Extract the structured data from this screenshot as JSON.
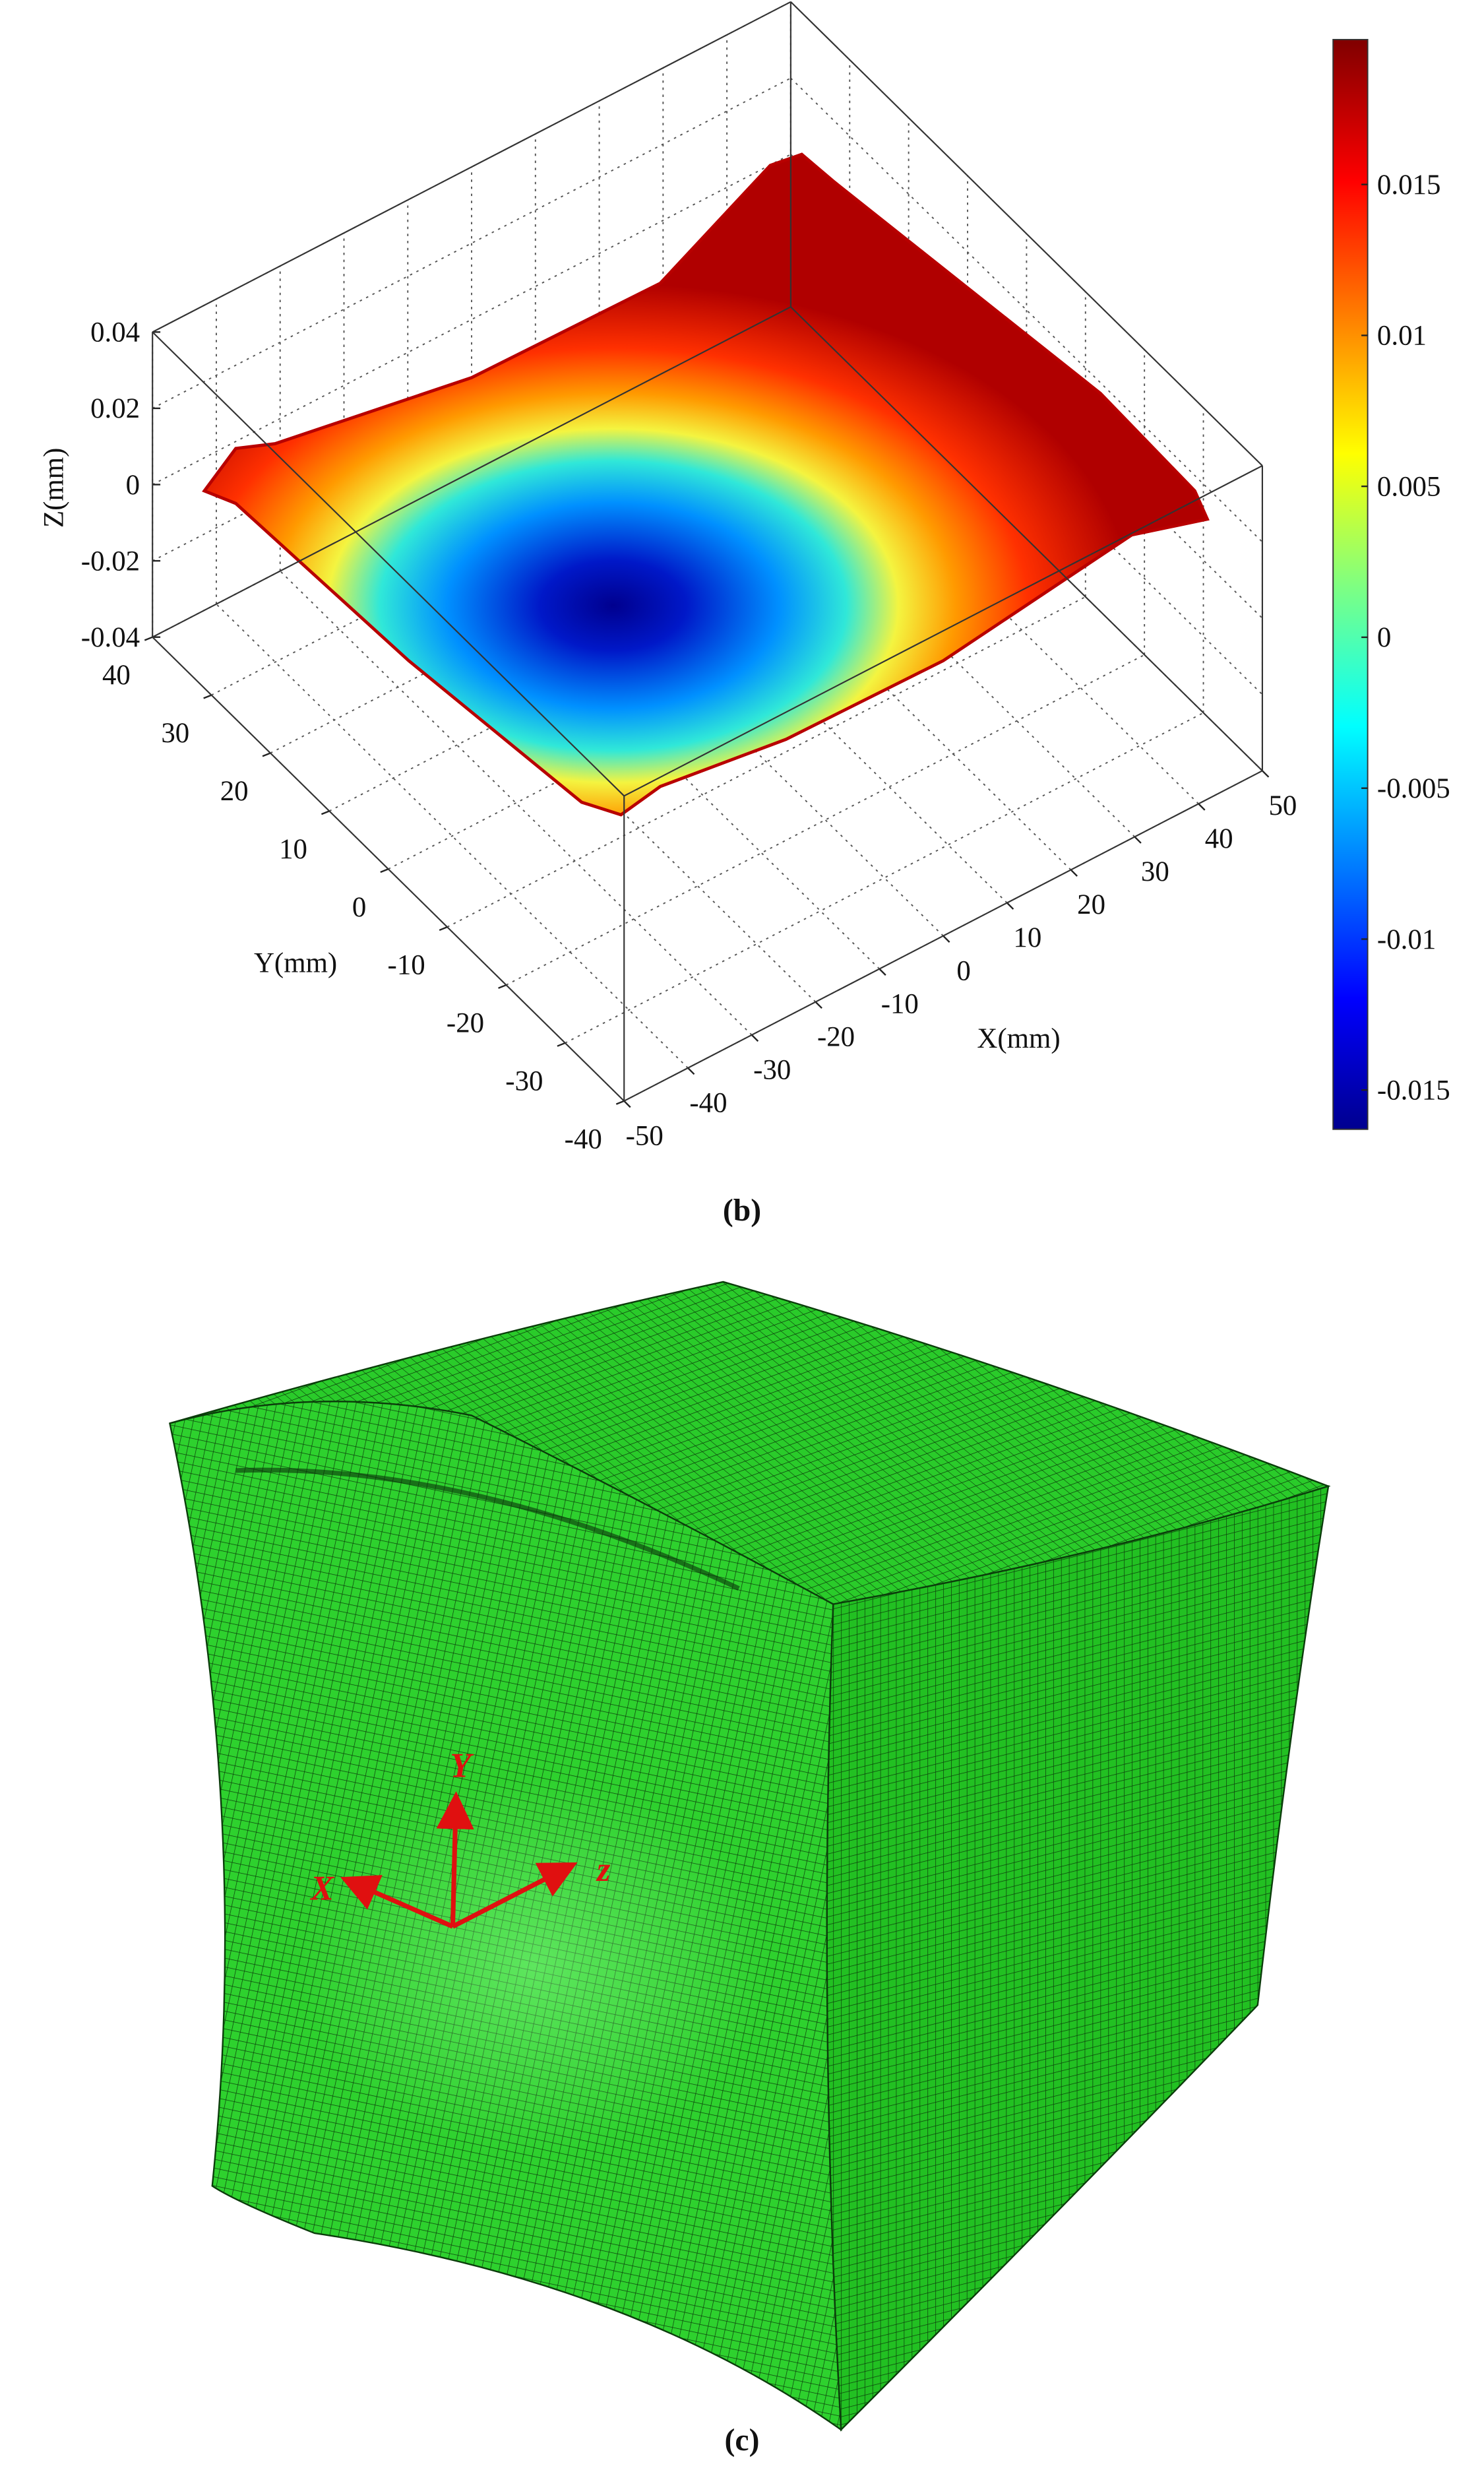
{
  "panel_b": {
    "z_axis": {
      "title": "Z(mm)",
      "lim": [
        -0.04,
        0.04
      ],
      "ticks": [
        0.04,
        0.02,
        0,
        -0.02,
        -0.04
      ]
    },
    "y_axis": {
      "title": "Y(mm)",
      "lim": [
        -40,
        40
      ],
      "ticks": [
        40,
        30,
        20,
        10,
        0,
        -10,
        -20,
        -30,
        -40
      ]
    },
    "x_axis": {
      "title": "X(mm)",
      "lim": [
        -50,
        50
      ],
      "ticks": [
        -50,
        -40,
        -30,
        -20,
        -10,
        0,
        10,
        20,
        30,
        40,
        50
      ]
    },
    "colorbar": {
      "lim": [
        -0.0163,
        0.0198
      ],
      "ticks": [
        0.015,
        0.01,
        0.005,
        0,
        -0.005,
        -0.01,
        -0.015
      ]
    },
    "label": "(b)"
  },
  "panel_c": {
    "triad": {
      "y": "Y",
      "x": "X",
      "z": "z"
    },
    "label": "(c)"
  }
}
